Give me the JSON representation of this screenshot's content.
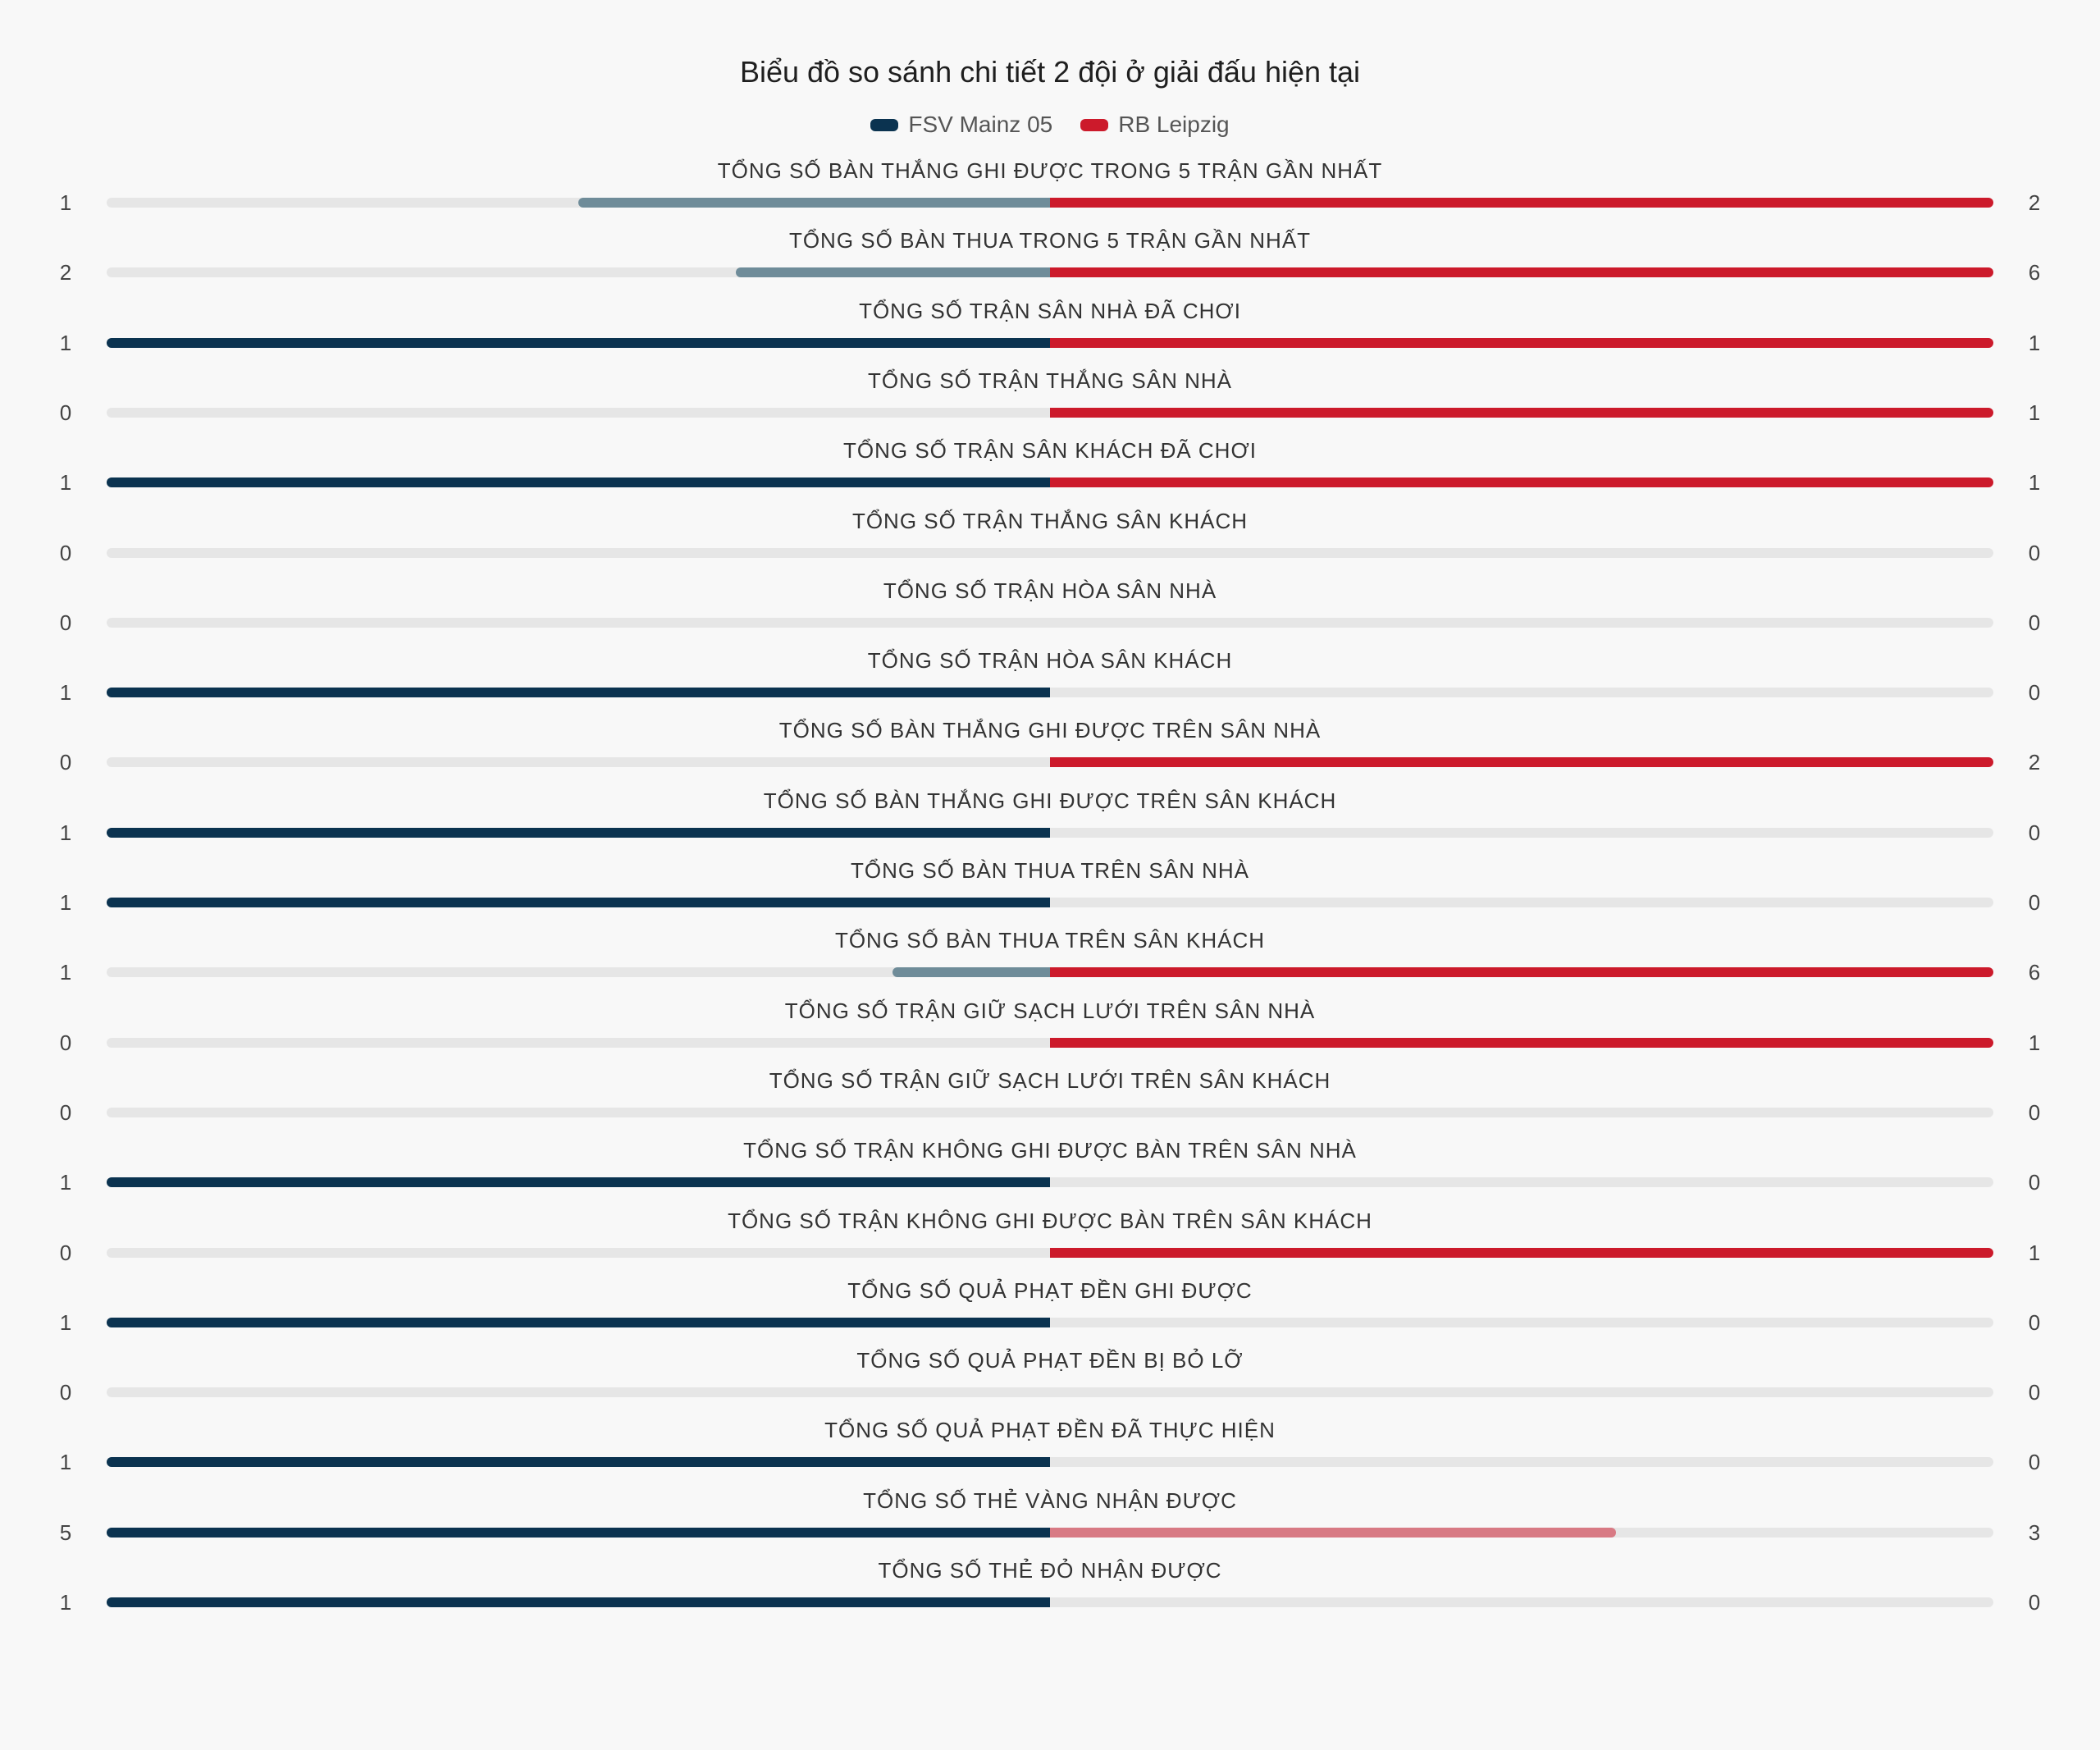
{
  "colors": {
    "team_a": "#0b3350",
    "team_a_light": "#6f8c99",
    "team_b": "#cc1a2b",
    "team_b_light": "#d87a84",
    "track": "#e6e6e6"
  },
  "chart_data": {
    "type": "bar",
    "orientation": "diverging-horizontal",
    "title": "Biểu đồ so sánh chi tiết 2 đội ở giải đấu hiện tại",
    "legend_position": "top-center",
    "series": [
      {
        "name": "FSV Mainz 05",
        "values": [
          1,
          2,
          1,
          0,
          1,
          0,
          0,
          1,
          0,
          1,
          1,
          1,
          0,
          0,
          1,
          0,
          1,
          0,
          1,
          5,
          1
        ]
      },
      {
        "name": "RB Leipzig",
        "values": [
          2,
          6,
          1,
          1,
          1,
          0,
          0,
          0,
          2,
          0,
          0,
          6,
          1,
          0,
          0,
          1,
          0,
          0,
          0,
          3,
          0
        ]
      }
    ],
    "categories": [
      "TỔNG SỐ BÀN THẮNG GHI ĐƯỢC TRONG 5 TRẬN GẦN NHẤT",
      "TỔNG SỐ BÀN THUA TRONG 5 TRẬN GẦN NHẤT",
      "TỔNG SỐ TRẬN SÂN NHÀ ĐÃ CHƠI",
      "TỔNG SỐ TRẬN THẮNG SÂN NHÀ",
      "TỔNG SỐ TRẬN SÂN KHÁCH ĐÃ CHƠI",
      "TỔNG SỐ TRẬN THẮNG SÂN KHÁCH",
      "TỔNG SỐ TRẬN HÒA SÂN NHÀ",
      "TỔNG SỐ TRẬN HÒA SÂN KHÁCH",
      "TỔNG SỐ BÀN THẮNG GHI ĐƯỢC TRÊN SÂN NHÀ",
      "TỔNG SỐ BÀN THẮNG GHI ĐƯỢC TRÊN SÂN KHÁCH",
      "TỔNG SỐ BÀN THUA TRÊN SÂN NHÀ",
      "TỔNG SỐ BÀN THUA TRÊN SÂN KHÁCH",
      "TỔNG SỐ TRẬN GIỮ SẠCH LƯỚI TRÊN SÂN NHÀ",
      "TỔNG SỐ TRẬN GIỮ SẠCH LƯỚI TRÊN SÂN KHÁCH",
      "TỔNG SỐ TRẬN KHÔNG GHI ĐƯỢC BÀN TRÊN SÂN NHÀ",
      "TỔNG SỐ TRẬN KHÔNG GHI ĐƯỢC BÀN TRÊN SÂN KHÁCH",
      "TỔNG SỐ QUẢ PHẠT ĐỀN GHI ĐƯỢC",
      "TỔNG SỐ QUẢ PHẠT ĐỀN BỊ BỎ LỠ",
      "TỔNG SỐ QUẢ PHẠT ĐỀN ĐÃ THỰC HIỆN",
      "TỔNG SỐ THẺ VÀNG NHẬN ĐƯỢC",
      "TỔNG SỐ THẺ ĐỎ NHẬN ĐƯỢC"
    ]
  }
}
